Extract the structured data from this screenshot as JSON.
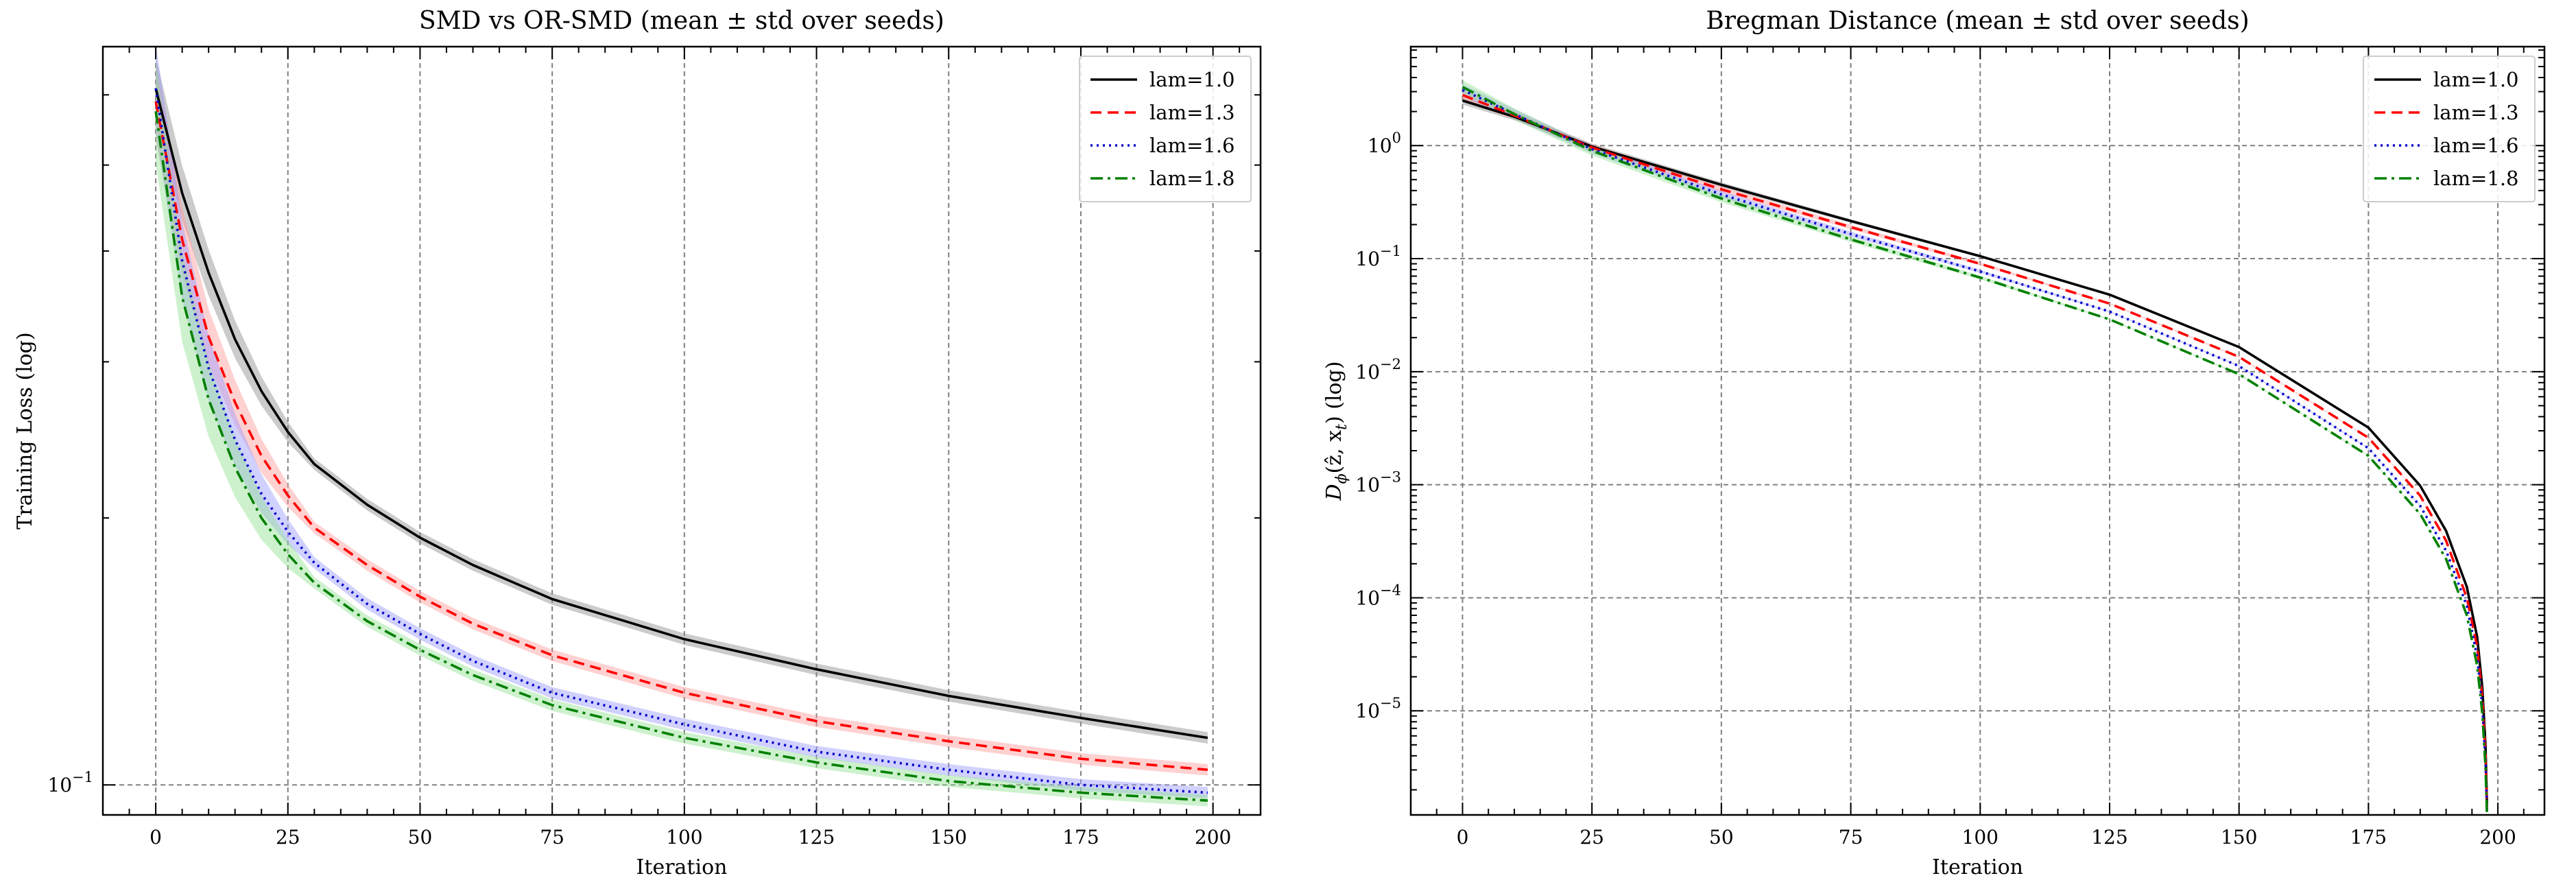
{
  "chart_data": [
    {
      "type": "line",
      "title": "SMD vs OR-SMD (mean ± std over seeds)",
      "xlabel": "Iteration",
      "ylabel": "Training Loss (log)",
      "yscale": "log",
      "xlim": [
        -10,
        209
      ],
      "ylim": [
        0.0925,
        0.68
      ],
      "xticks": [
        0,
        25,
        50,
        75,
        100,
        125,
        150,
        175,
        200
      ],
      "yticks": [
        {
          "value": 0.1,
          "base": "10",
          "exp": "−1"
        }
      ],
      "grid": true,
      "legend_position": "top-right",
      "series": [
        {
          "name": "lam=1.0",
          "color": "#000000",
          "dash": "solid",
          "band_color": "#8c8c8c",
          "x": [
            0,
            5,
            10,
            15,
            20,
            25,
            30,
            40,
            50,
            60,
            75,
            100,
            125,
            150,
            175,
            199
          ],
          "y": [
            0.61,
            0.465,
            0.378,
            0.318,
            0.278,
            0.25,
            0.23,
            0.207,
            0.19,
            0.177,
            0.162,
            0.146,
            0.135,
            0.126,
            0.119,
            0.113
          ]
        },
        {
          "name": "lam=1.3",
          "color": "#ff0000",
          "dash": "dashed",
          "band_color": "#ff9a9a",
          "x": [
            0,
            5,
            10,
            15,
            20,
            25,
            30,
            40,
            50,
            60,
            75,
            100,
            125,
            150,
            175,
            199
          ],
          "y": [
            0.59,
            0.412,
            0.32,
            0.27,
            0.235,
            0.212,
            0.195,
            0.177,
            0.163,
            0.152,
            0.14,
            0.127,
            0.118,
            0.112,
            0.107,
            0.104
          ]
        },
        {
          "name": "lam=1.6",
          "color": "#0000cc",
          "dash": "dotted",
          "band_color": "#9a9aff",
          "x": [
            0,
            5,
            10,
            15,
            20,
            25,
            30,
            40,
            50,
            60,
            75,
            100,
            125,
            150,
            175,
            199
          ],
          "y": [
            0.61,
            0.39,
            0.295,
            0.245,
            0.213,
            0.193,
            0.178,
            0.16,
            0.148,
            0.138,
            0.127,
            0.117,
            0.109,
            0.104,
            0.1,
            0.098
          ]
        },
        {
          "name": "lam=1.8",
          "color": "#008000",
          "dash": "dashdot",
          "band_color": "#90e090",
          "x": [
            0,
            5,
            10,
            15,
            20,
            25,
            30,
            40,
            50,
            60,
            75,
            100,
            125,
            150,
            175,
            199
          ],
          "y": [
            0.575,
            0.355,
            0.272,
            0.228,
            0.2,
            0.182,
            0.169,
            0.153,
            0.142,
            0.133,
            0.123,
            0.113,
            0.106,
            0.101,
            0.098,
            0.096
          ]
        }
      ]
    },
    {
      "type": "line",
      "title": "Bregman Distance (mean ± std over seeds)",
      "xlabel": "Iteration",
      "ylabel": "D_ϕ(ẑ, x_t) (log)",
      "ylabel_parts": {
        "main": "D",
        "sub1": "ϕ",
        "mid": "(ẑ, x",
        "sub2": "t",
        "end": ") (log)"
      },
      "yscale": "log",
      "xlim": [
        -10,
        209
      ],
      "ylim": [
        1.2e-06,
        7.5
      ],
      "xticks": [
        0,
        25,
        50,
        75,
        100,
        125,
        150,
        175,
        200
      ],
      "yticks": [
        {
          "value": 1,
          "base": "10",
          "exp": "0"
        },
        {
          "value": 0.1,
          "base": "10",
          "exp": "−1"
        },
        {
          "value": 0.01,
          "base": "10",
          "exp": "−2"
        },
        {
          "value": 0.001,
          "base": "10",
          "exp": "−3"
        },
        {
          "value": 0.0001,
          "base": "10",
          "exp": "−4"
        },
        {
          "value": 1e-05,
          "base": "10",
          "exp": "−5"
        }
      ],
      "grid": true,
      "legend_position": "top-right",
      "series": [
        {
          "name": "lam=1.0",
          "color": "#000000",
          "dash": "solid",
          "band_color": "#8c8c8c",
          "x": [
            0,
            10,
            25,
            50,
            75,
            100,
            125,
            150,
            175,
            185,
            190,
            194,
            196,
            197,
            197.6,
            197.9
          ],
          "y": [
            2.5,
            1.8,
            0.98,
            0.45,
            0.215,
            0.105,
            0.048,
            0.0165,
            0.0032,
            0.00098,
            0.00039,
            0.000125,
            4.5e-05,
            1.6e-05,
            5e-06,
            1.5e-06
          ]
        },
        {
          "name": "lam=1.3",
          "color": "#ff0000",
          "dash": "dashed",
          "band_color": "#ff9a9a",
          "x": [
            0,
            10,
            25,
            50,
            75,
            100,
            125,
            150,
            175,
            185,
            190,
            194,
            196,
            197,
            197.6,
            197.9
          ],
          "y": [
            2.8,
            1.85,
            0.96,
            0.41,
            0.19,
            0.09,
            0.04,
            0.0135,
            0.0026,
            0.0008,
            0.00032,
            0.0001,
            3.7e-05,
            1.3e-05,
            4.2e-06,
            1.4e-06
          ]
        },
        {
          "name": "lam=1.6",
          "color": "#0000cc",
          "dash": "dotted",
          "band_color": "#9a9aff",
          "x": [
            0,
            10,
            25,
            50,
            75,
            100,
            125,
            150,
            175,
            185,
            190,
            194,
            196,
            197,
            197.6,
            197.9
          ],
          "y": [
            3.1,
            1.9,
            0.93,
            0.37,
            0.165,
            0.077,
            0.034,
            0.0112,
            0.0021,
            0.00065,
            0.00026,
            8.5e-05,
            3e-05,
            1.1e-05,
            3.6e-06,
            1.3e-06
          ]
        },
        {
          "name": "lam=1.8",
          "color": "#008000",
          "dash": "dashdot",
          "band_color": "#90e090",
          "x": [
            0,
            10,
            25,
            50,
            75,
            100,
            125,
            150,
            175,
            185,
            190,
            194,
            196,
            197,
            197.6,
            197.9
          ],
          "y": [
            3.3,
            1.9,
            0.9,
            0.34,
            0.148,
            0.068,
            0.029,
            0.0095,
            0.0018,
            0.00055,
            0.00022,
            7e-05,
            2.5e-05,
            9.5e-06,
            3.2e-06,
            1.2e-06
          ]
        }
      ]
    }
  ]
}
